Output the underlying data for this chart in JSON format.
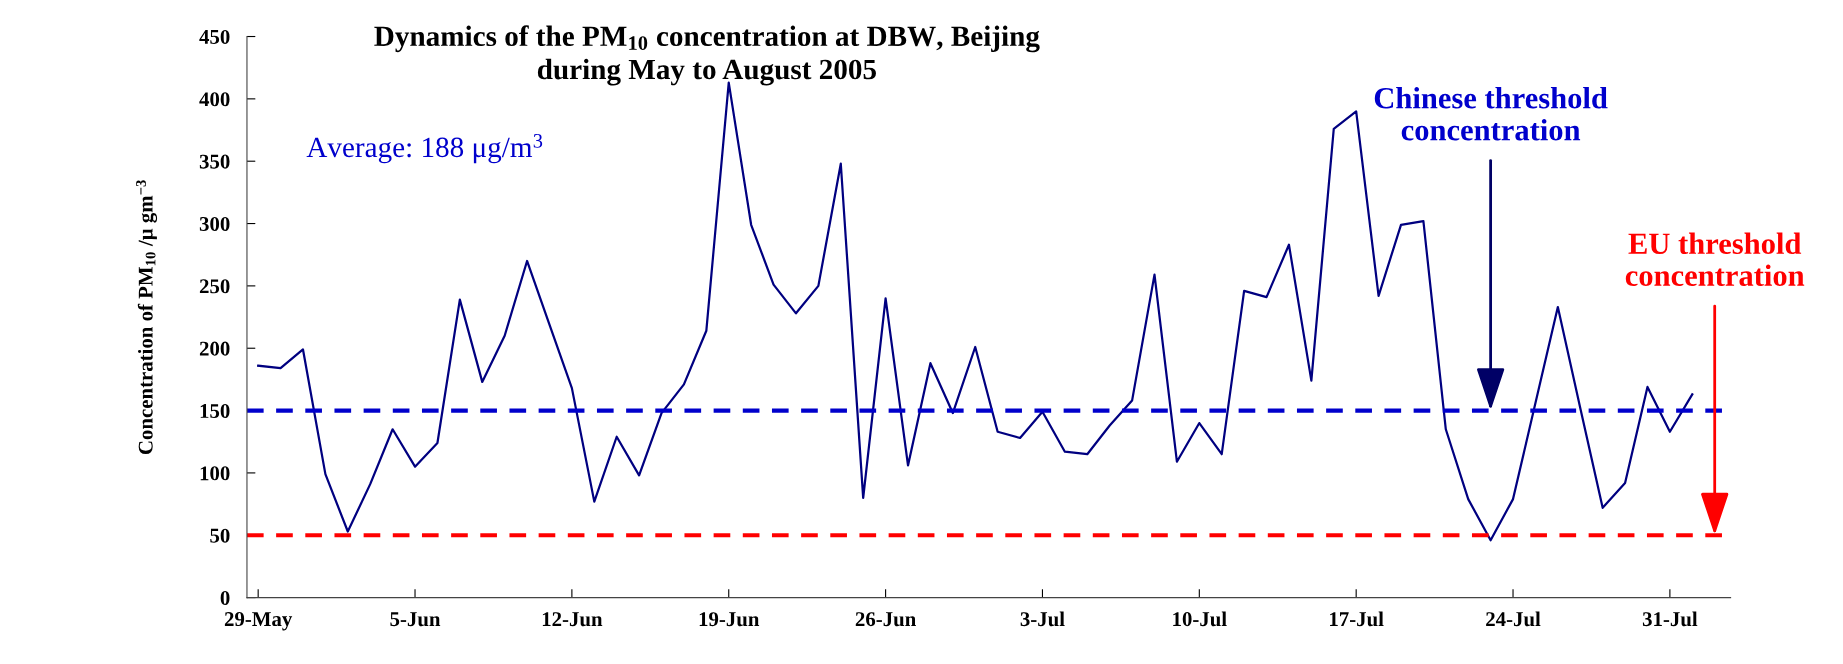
{
  "chart_data": {
    "type": "line",
    "title": "Dynamics of the PM$_{10}$ concentration at DBW, Beijing\nduring May to August 2005",
    "ylabel": "Concentration of PM$_{10}$ /μ gm$^{−3}$",
    "x": [
      "2005-05-29",
      "2005-05-30",
      "2005-05-31",
      "2005-06-01",
      "2005-06-02",
      "2005-06-03",
      "2005-06-04",
      "2005-06-05",
      "2005-06-06",
      "2005-06-07",
      "2005-06-08",
      "2005-06-09",
      "2005-06-10",
      "2005-06-11",
      "2005-06-12",
      "2005-06-13",
      "2005-06-14",
      "2005-06-15",
      "2005-06-16",
      "2005-06-17",
      "2005-06-18",
      "2005-06-19",
      "2005-06-20",
      "2005-06-21",
      "2005-06-22",
      "2005-06-23",
      "2005-06-24",
      "2005-06-25",
      "2005-06-26",
      "2005-06-27",
      "2005-06-28",
      "2005-06-29",
      "2005-06-30",
      "2005-07-01",
      "2005-07-02",
      "2005-07-03",
      "2005-07-04",
      "2005-07-05",
      "2005-07-06",
      "2005-07-07",
      "2005-07-08",
      "2005-07-09",
      "2005-07-10",
      "2005-07-11",
      "2005-07-12",
      "2005-07-13",
      "2005-07-14",
      "2005-07-15",
      "2005-07-16",
      "2005-07-17",
      "2005-07-18",
      "2005-07-19",
      "2005-07-20",
      "2005-07-21",
      "2005-07-22",
      "2005-07-23",
      "2005-07-24",
      "2005-07-25",
      "2005-07-26",
      "2005-07-27",
      "2005-07-28",
      "2005-07-29",
      "2005-07-30",
      "2005-07-31",
      "2005-08-01"
    ],
    "series": [
      {
        "color": "#000080",
        "values": [
          186,
          184,
          199,
          99,
          53,
          91,
          135,
          105,
          124,
          239,
          173,
          210,
          270,
          219,
          168,
          77,
          129,
          98,
          148,
          171,
          214,
          413,
          299,
          251,
          228,
          250,
          348,
          80,
          240,
          106,
          188,
          148,
          201,
          133,
          128,
          149,
          117,
          115,
          138,
          158,
          259,
          109,
          140,
          115,
          246,
          241,
          283,
          174,
          376,
          390,
          242,
          299,
          302,
          135,
          79,
          46,
          79,
          156,
          233,
          152,
          72,
          92,
          169,
          133,
          163
        ]
      }
    ],
    "xlim": [
      "2005-05-28T12:00",
      "2005-08-02T17:00"
    ],
    "xticks": [
      {
        "value": "2005-05-29",
        "label": "29-May"
      },
      {
        "value": "2005-06-05",
        "label": "5-Jun"
      },
      {
        "value": "2005-06-12",
        "label": "12-Jun"
      },
      {
        "value": "2005-06-19",
        "label": "19-Jun"
      },
      {
        "value": "2005-06-26",
        "label": "26-Jun"
      },
      {
        "value": "2005-07-03",
        "label": "3-Jul"
      },
      {
        "value": "2005-07-10",
        "label": "10-Jul"
      },
      {
        "value": "2005-07-17",
        "label": "17-Jul"
      },
      {
        "value": "2005-07-24",
        "label": "24-Jul"
      },
      {
        "value": "2005-07-31",
        "label": "31-Jul"
      }
    ],
    "ylim": [
      0,
      450
    ],
    "yticks": [
      0,
      50,
      100,
      150,
      200,
      250,
      300,
      350,
      400,
      450
    ],
    "ref_lines": [
      {
        "axis": "y",
        "value": 150,
        "color": "#0000cc",
        "line_style": "dashed"
      },
      {
        "axis": "y",
        "value": 50,
        "color": "#ff0000",
        "line_style": "dashed"
      }
    ],
    "annotations": [
      "Average: 188 μg/m$^{3}$",
      {
        "text": "Chinese threshold concentration",
        "x": "2005-07-23",
        "y": 150
      },
      {
        "text": "EU threshold concentration",
        "x": "2005-08-02",
        "y": 50
      }
    ],
    "grid": false,
    "legend": false,
    "marker": "none",
    "line_style": "solid"
  }
}
